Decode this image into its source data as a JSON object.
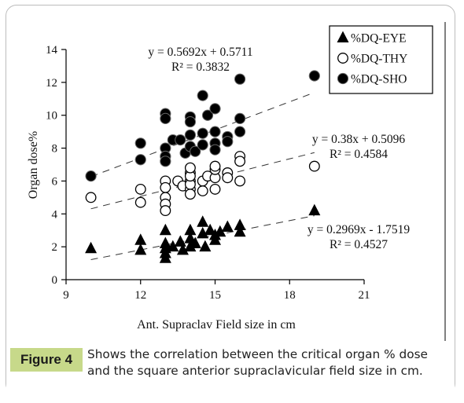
{
  "caption": {
    "label": "Figure 4",
    "text": "Shows the correlation between the critical organ % dose and the square anterior supraclavicular field size in cm."
  },
  "chart_data": {
    "type": "scatter",
    "xlabel": "Ant. Supraclav Field size in cm",
    "ylabel": "Organ dose%",
    "xlim": [
      9,
      21
    ],
    "ylim": [
      0,
      14
    ],
    "xticks": [
      9,
      12,
      15,
      18,
      21
    ],
    "yticks": [
      0,
      2,
      4,
      6,
      8,
      10,
      12,
      14
    ],
    "grid": false,
    "legend_position": "top-right",
    "series": [
      {
        "name": "%DQ-EYE",
        "marker": "triangle",
        "color": "#000000",
        "trendline": {
          "slope": 0.2969,
          "intercept": -1.7519,
          "equation": "y = 0.2969x - 1.7519",
          "r2": "R² = 0.4527"
        },
        "points": [
          [
            10,
            1.9
          ],
          [
            12,
            2.4
          ],
          [
            12,
            1.8
          ],
          [
            13,
            3.0
          ],
          [
            13,
            2.2
          ],
          [
            13,
            1.9
          ],
          [
            13,
            1.6
          ],
          [
            13,
            1.3
          ],
          [
            13.3,
            2.0
          ],
          [
            13.6,
            2.3
          ],
          [
            13.7,
            1.8
          ],
          [
            14,
            2.5
          ],
          [
            14,
            2.0
          ],
          [
            14,
            3.0
          ],
          [
            14.2,
            2.2
          ],
          [
            14.5,
            2.8
          ],
          [
            14.5,
            3.5
          ],
          [
            14.6,
            2.0
          ],
          [
            14.8,
            3.0
          ],
          [
            15,
            2.4
          ],
          [
            15,
            2.7
          ],
          [
            15.2,
            2.9
          ],
          [
            15.5,
            3.2
          ],
          [
            16,
            2.9
          ],
          [
            16,
            3.3
          ],
          [
            19,
            4.2
          ]
        ]
      },
      {
        "name": "%DQ-THY",
        "marker": "circle-open",
        "color": "#000000",
        "trendline": {
          "slope": 0.38,
          "intercept": 0.5096,
          "equation": "y = 0.38x + 0.5096",
          "r2": "R² = 0.4584"
        },
        "points": [
          [
            10,
            5.0
          ],
          [
            12,
            5.5
          ],
          [
            12,
            4.7
          ],
          [
            13,
            6.0
          ],
          [
            13,
            5.6
          ],
          [
            13,
            5.0
          ],
          [
            13,
            4.6
          ],
          [
            13,
            4.2
          ],
          [
            13.5,
            6.0
          ],
          [
            13.7,
            5.7
          ],
          [
            14,
            6.5
          ],
          [
            14,
            6.0
          ],
          [
            14,
            5.5
          ],
          [
            14,
            5.2
          ],
          [
            14,
            5.8
          ],
          [
            14,
            6.3
          ],
          [
            14,
            6.8
          ],
          [
            14.5,
            6.0
          ],
          [
            14.5,
            5.4
          ],
          [
            14.7,
            6.3
          ],
          [
            15,
            6.2
          ],
          [
            15,
            6.7
          ],
          [
            15,
            6.9
          ],
          [
            15,
            5.5
          ],
          [
            15.5,
            6.5
          ],
          [
            15.5,
            6.2
          ],
          [
            16,
            7.5
          ],
          [
            16,
            7.2
          ],
          [
            16,
            6.0
          ],
          [
            19,
            6.9
          ]
        ]
      },
      {
        "name": "%DQ-SHO",
        "marker": "circle-filled",
        "color": "#000000",
        "trendline": {
          "slope": 0.5692,
          "intercept": 0.5711,
          "equation": "y = 0.5692x + 0.5711",
          "r2": "R² = 0.3832"
        },
        "points": [
          [
            10,
            6.3
          ],
          [
            12,
            8.3
          ],
          [
            12,
            7.3
          ],
          [
            13,
            10.1
          ],
          [
            13,
            9.8
          ],
          [
            13,
            8.0
          ],
          [
            13,
            7.5
          ],
          [
            13,
            7.2
          ],
          [
            13.3,
            8.5
          ],
          [
            13.6,
            8.5
          ],
          [
            13.8,
            7.7
          ],
          [
            14,
            9.9
          ],
          [
            14,
            9.6
          ],
          [
            14,
            8.8
          ],
          [
            14,
            8.1
          ],
          [
            14.2,
            7.8
          ],
          [
            14.5,
            11.2
          ],
          [
            14.5,
            8.9
          ],
          [
            14.5,
            8.2
          ],
          [
            14.7,
            10.0
          ],
          [
            15,
            10.4
          ],
          [
            15,
            9.0
          ],
          [
            15,
            8.3
          ],
          [
            15,
            7.9
          ],
          [
            15.5,
            8.7
          ],
          [
            15.5,
            8.4
          ],
          [
            16,
            12.2
          ],
          [
            16,
            9.8
          ],
          [
            16,
            9.0
          ],
          [
            19,
            12.4
          ]
        ]
      }
    ]
  }
}
